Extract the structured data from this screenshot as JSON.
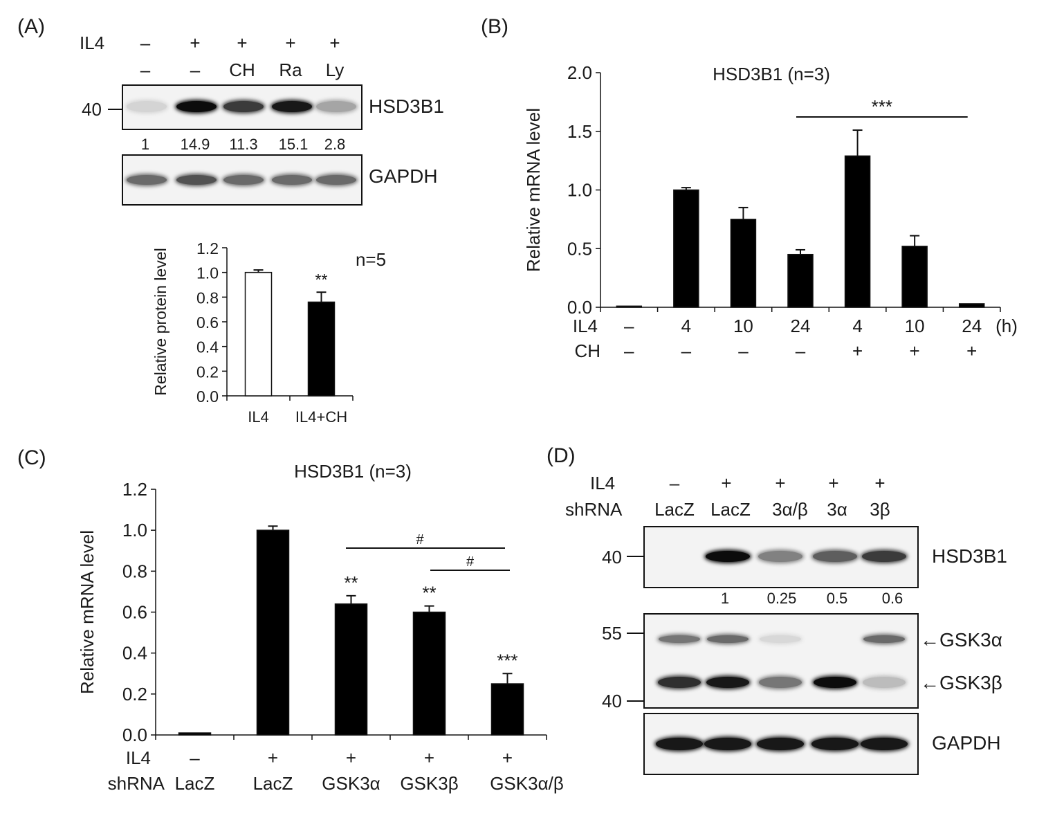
{
  "panelA": {
    "label": "(A)",
    "row1_label": "IL4",
    "row1": [
      "–",
      "+",
      "+",
      "+",
      "+"
    ],
    "row2": [
      "–",
      "–",
      "CH",
      "Ra",
      "Ly"
    ],
    "mw": "40",
    "blot1_name": "HSD3B1",
    "quant": [
      "1",
      "14.9",
      "11.3",
      "15.1",
      "2.8"
    ],
    "blot2_name": "GAPDH",
    "band_intensity_hsd3b1": [
      0.1,
      0.95,
      0.75,
      0.9,
      0.3
    ],
    "band_intensity_gapdh": [
      0.55,
      0.65,
      0.55,
      0.55,
      0.55
    ]
  },
  "panelB": {
    "label": "(B)"
  },
  "panelC": {
    "label": "(C)"
  },
  "panelD": {
    "label": "(D)",
    "row1_label": "IL4",
    "row1": [
      "–",
      "+",
      "+",
      "+",
      "+"
    ],
    "row2_label": "shRNA",
    "row2": [
      "LacZ",
      "LacZ",
      "3α/β",
      "3α",
      "3β"
    ],
    "blot1_mw": "40",
    "blot1_name": "HSD3B1",
    "quant": [
      "1",
      "0.25",
      "0.5",
      "0.6"
    ],
    "blot2_mw": [
      "55",
      "40"
    ],
    "blot2_names": [
      "←GSK3α",
      "←GSK3β"
    ],
    "blot3_name": "GAPDH",
    "band_intensity_hsd3b1": [
      0.0,
      0.95,
      0.45,
      0.6,
      0.75
    ],
    "band_intensity_gsk3a": [
      0.5,
      0.55,
      0.08,
      0.0,
      0.55
    ],
    "band_intensity_gsk3b": [
      0.8,
      0.9,
      0.5,
      0.95,
      0.2
    ],
    "band_intensity_gapdh": [
      0.9,
      0.9,
      0.9,
      0.9,
      0.9
    ]
  },
  "chart_data": [
    {
      "id": "A-quant",
      "type": "bar",
      "title": "n=5",
      "ylabel": "Relative protein level",
      "categories": [
        "IL4",
        "IL4+CH"
      ],
      "values": [
        1.0,
        0.76
      ],
      "errors": [
        0.02,
        0.08
      ],
      "fills": [
        "#ffffff",
        "#000000"
      ],
      "annotations": [
        "",
        "**"
      ],
      "yticks": [
        "0.0",
        "0.2",
        "0.4",
        "0.6",
        "0.8",
        "1.0",
        "1.2"
      ],
      "ylim": [
        0,
        1.2
      ]
    },
    {
      "id": "B",
      "type": "bar",
      "title": "HSD3B1 (n=3)",
      "ylabel": "Relative mRNA level",
      "row_labels": [
        "IL4",
        "CH"
      ],
      "categories": [
        "–",
        "4",
        "10",
        "24",
        "4",
        "10",
        "24"
      ],
      "ch_row": [
        "–",
        "–",
        "–",
        "–",
        "+",
        "+",
        "+"
      ],
      "unit_label": "(h)",
      "values": [
        0.01,
        1.0,
        0.75,
        0.45,
        1.29,
        0.52,
        0.03
      ],
      "errors": [
        0.0,
        0.02,
        0.1,
        0.04,
        0.22,
        0.09,
        0.0
      ],
      "significance": {
        "text": "***",
        "from": 3,
        "to": 6
      },
      "yticks": [
        "0.0",
        "0.5",
        "1.0",
        "1.5",
        "2.0"
      ],
      "ylim": [
        0,
        2.0
      ]
    },
    {
      "id": "C",
      "type": "bar",
      "title": "HSD3B1 (n=3)",
      "ylabel": "Relative mRNA level",
      "row_labels": [
        "IL4",
        "shRNA"
      ],
      "il4_row": [
        "–",
        "+",
        "+",
        "+",
        "+"
      ],
      "categories": [
        "LacZ",
        "LacZ",
        "GSK3α",
        "GSK3β",
        "GSK3α/β"
      ],
      "values": [
        0.01,
        1.0,
        0.64,
        0.6,
        0.25
      ],
      "errors": [
        0.0,
        0.02,
        0.04,
        0.03,
        0.05
      ],
      "annotations": [
        "",
        "",
        "**",
        "**",
        "***"
      ],
      "brackets": [
        {
          "text": "#",
          "from": 2,
          "to": 4
        },
        {
          "text": "#",
          "from": 3,
          "to": 4
        }
      ],
      "yticks": [
        "0.0",
        "0.2",
        "0.4",
        "0.6",
        "0.8",
        "1.0",
        "1.2"
      ],
      "ylim": [
        0,
        1.2
      ]
    }
  ]
}
